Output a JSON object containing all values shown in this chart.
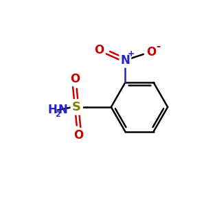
{
  "bg_color": "#ffffff",
  "bond_color": "#000000",
  "S_color": "#808000",
  "N_color": "#2222cc",
  "O_color": "#cc0000",
  "figsize": [
    3.0,
    3.0
  ],
  "dpi": 100,
  "xlim": [
    0,
    10
  ],
  "ylim": [
    0,
    10
  ]
}
